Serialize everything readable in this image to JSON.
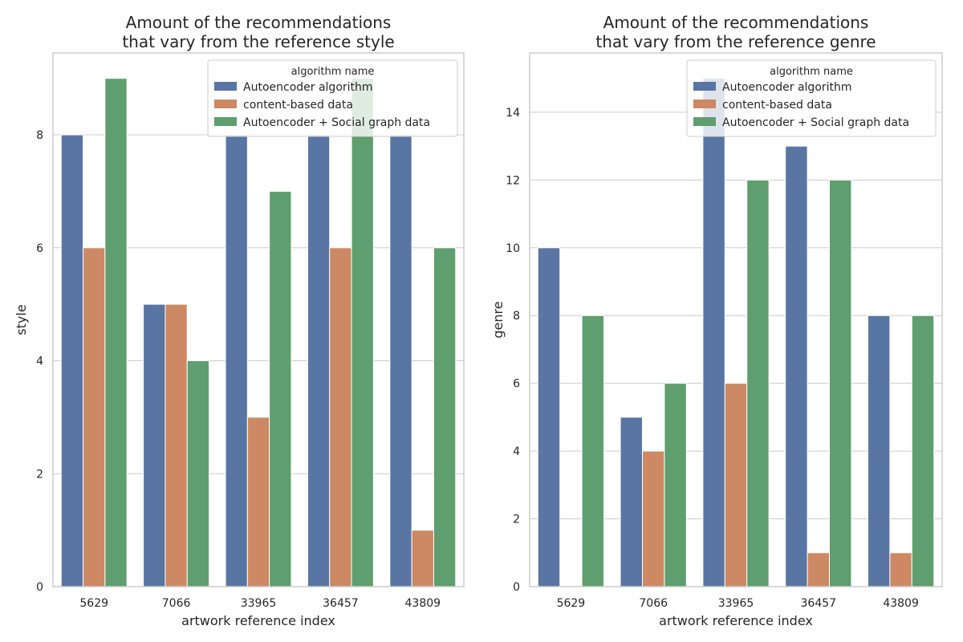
{
  "chart_data": [
    {
      "type": "bar",
      "title_lines": [
        "Amount of the recommendations",
        "that vary from the reference style"
      ],
      "xlabel": "artwork reference index",
      "ylabel": "style",
      "categories": [
        "5629",
        "7066",
        "33965",
        "36457",
        "43809"
      ],
      "ylim": [
        0,
        9.45
      ],
      "yticks": [
        0,
        2,
        4,
        6,
        8
      ],
      "grid": "horizontal",
      "legend": {
        "title": "algorithm name",
        "placement": "top-right"
      },
      "series": [
        {
          "name": "Autoencoder algorithm",
          "color": "#5975a4",
          "values": [
            8,
            5,
            8,
            8,
            8
          ]
        },
        {
          "name": "content-based data",
          "color": "#cc8963",
          "values": [
            6,
            5,
            3,
            6,
            1
          ]
        },
        {
          "name": "Autoencoder + Social graph data",
          "color": "#5f9e6e",
          "values": [
            9,
            4,
            7,
            9,
            6
          ]
        }
      ]
    },
    {
      "type": "bar",
      "title_lines": [
        "Amount of the recommendations",
        "that vary from the reference genre"
      ],
      "xlabel": "artwork reference index",
      "ylabel": "genre",
      "categories": [
        "5629",
        "7066",
        "33965",
        "36457",
        "43809"
      ],
      "ylim": [
        0,
        15.75
      ],
      "yticks": [
        0,
        2,
        4,
        6,
        8,
        10,
        12,
        14
      ],
      "grid": "horizontal",
      "legend": {
        "title": "algorithm name",
        "placement": "top-right"
      },
      "series": [
        {
          "name": "Autoencoder algorithm",
          "color": "#5975a4",
          "values": [
            10,
            5,
            15,
            13,
            8
          ]
        },
        {
          "name": "content-based data",
          "color": "#cc8963",
          "values": [
            0,
            4,
            6,
            1,
            1
          ]
        },
        {
          "name": "Autoencoder + Social graph data",
          "color": "#5f9e6e",
          "values": [
            8,
            6,
            12,
            12,
            8
          ]
        }
      ]
    }
  ]
}
